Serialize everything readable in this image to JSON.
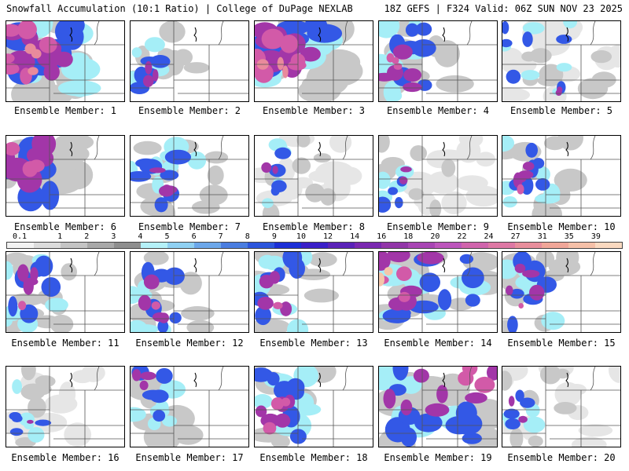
{
  "header": {
    "left_text": "Snowfall Accumulation (10:1 Ratio) | College of DuPage NEXLAB",
    "right_text": "18Z GEFS | F324 Valid: 06Z SUN NOV 23 2025"
  },
  "panels": [
    {
      "label": "Ensemble Member: 1",
      "intensity": "very-heavy-west"
    },
    {
      "label": "Ensemble Member: 2",
      "intensity": "moderate-southwest"
    },
    {
      "label": "Ensemble Member: 3",
      "intensity": "very-heavy-west"
    },
    {
      "label": "Ensemble Member: 4",
      "intensity": "heavy-west"
    },
    {
      "label": "Ensemble Member: 5",
      "intensity": "moderate-scattered"
    },
    {
      "label": "Ensemble Member: 6",
      "intensity": "heavy-northwest"
    },
    {
      "label": "Ensemble Member: 7",
      "intensity": "moderate-central-west"
    },
    {
      "label": "Ensemble Member: 8",
      "intensity": "light-moderate-west"
    },
    {
      "label": "Ensemble Member: 9",
      "intensity": "light-moderate-west"
    },
    {
      "label": "Ensemble Member: 10",
      "intensity": "moderate-west"
    },
    {
      "label": "Ensemble Member: 11",
      "intensity": "moderate-west"
    },
    {
      "label": "Ensemble Member: 12",
      "intensity": "moderate-west"
    },
    {
      "label": "Ensemble Member: 13",
      "intensity": "moderate-west"
    },
    {
      "label": "Ensemble Member: 14",
      "intensity": "heavy-northeast-band"
    },
    {
      "label": "Ensemble Member: 15",
      "intensity": "moderate-west"
    },
    {
      "label": "Ensemble Member: 16",
      "intensity": "light-west"
    },
    {
      "label": "Ensemble Member: 17",
      "intensity": "moderate-northwest"
    },
    {
      "label": "Ensemble Member: 18",
      "intensity": "heavy-west"
    },
    {
      "label": "Ensemble Member: 19",
      "intensity": "heavy-widespread"
    },
    {
      "label": "Ensemble Member: 20",
      "intensity": "light-moderate-west"
    }
  ],
  "colorbar": {
    "labels": [
      "0.1",
      "1",
      "2",
      "3",
      "4",
      "5",
      "6",
      "7",
      "8",
      "9",
      "10",
      "12",
      "14",
      "16",
      "18",
      "20",
      "22",
      "24",
      "27",
      "31",
      "35",
      "39"
    ],
    "colors": [
      "#f2f2f2",
      "#dcdcdc",
      "#c4c4c4",
      "#a8a8a8",
      "#8e8e8e",
      "#b5f1f8",
      "#8fd0f2",
      "#6ca7ea",
      "#4a7de0",
      "#2c55dc",
      "#1c2fd6",
      "#3a1fc8",
      "#5a22b8",
      "#7a28b0",
      "#9236a8",
      "#a845b4",
      "#bd56bc",
      "#d064ac",
      "#de78a4",
      "#e88e9c",
      "#f0a698",
      "#f5c0a8",
      "#fad9c0"
    ]
  },
  "colors": {
    "land_line": "#000000",
    "state_line": "#555555"
  }
}
